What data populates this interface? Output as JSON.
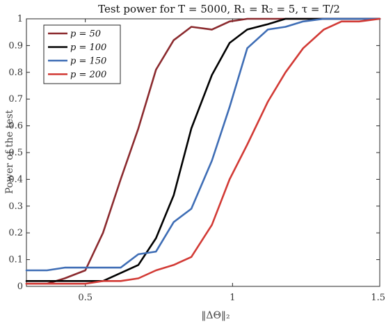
{
  "chart_data": {
    "type": "line",
    "title": "Test power for T = 5000, R₁ = R₂ = 5, τ = T/2",
    "xlabel": "‖ΔΘ‖₂",
    "ylabel": "Power of the test",
    "xlim": [
      0.3,
      1.5
    ],
    "ylim": [
      0,
      1
    ],
    "xticks": [
      0.5,
      1,
      1.5
    ],
    "xtick_labels": [
      "0.5",
      "1",
      "1.5"
    ],
    "yticks": [
      0,
      0.1,
      0.2,
      0.3,
      0.4,
      0.5,
      0.6,
      0.7,
      0.8,
      0.9,
      1
    ],
    "ytick_labels": [
      "0",
      "0.1",
      "0.2",
      "0.3",
      "0.4",
      "0.5",
      "0.6",
      "0.7",
      "0.8",
      "0.9",
      "1"
    ],
    "grid": false,
    "legend_position": "top-left",
    "x": [
      0.3,
      0.37,
      0.43,
      0.5,
      0.56,
      0.62,
      0.68,
      0.74,
      0.8,
      0.86,
      0.93,
      0.99,
      1.05,
      1.12,
      1.18,
      1.24,
      1.31,
      1.37,
      1.43,
      1.5
    ],
    "series": [
      {
        "name": "p = 50",
        "color": "#8B2A2E",
        "values": [
          0.01,
          0.01,
          0.03,
          0.06,
          0.2,
          0.4,
          0.59,
          0.81,
          0.92,
          0.97,
          0.96,
          0.99,
          1.0,
          1.0,
          1.0,
          1.0,
          1.0,
          1.0,
          1.0,
          1.0
        ]
      },
      {
        "name": "p = 100",
        "color": "#000000",
        "values": [
          0.02,
          0.02,
          0.02,
          0.02,
          0.02,
          0.05,
          0.08,
          0.18,
          0.34,
          0.59,
          0.79,
          0.91,
          0.96,
          0.98,
          1.0,
          1.0,
          1.0,
          1.0,
          1.0,
          1.0
        ]
      },
      {
        "name": "p = 150",
        "color": "#3E6DB5",
        "values": [
          0.06,
          0.06,
          0.07,
          0.07,
          0.07,
          0.07,
          0.12,
          0.13,
          0.24,
          0.29,
          0.47,
          0.67,
          0.89,
          0.96,
          0.97,
          0.99,
          1.0,
          1.0,
          1.0,
          1.0
        ]
      },
      {
        "name": "p = 200",
        "color": "#D23A35",
        "values": [
          0.01,
          0.01,
          0.01,
          0.01,
          0.02,
          0.02,
          0.03,
          0.06,
          0.08,
          0.11,
          0.23,
          0.4,
          0.53,
          0.69,
          0.8,
          0.89,
          0.96,
          0.99,
          0.99,
          1.0
        ]
      }
    ]
  }
}
